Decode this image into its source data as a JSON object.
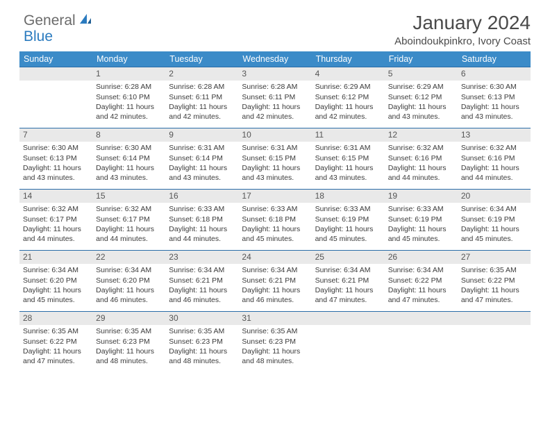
{
  "logo": {
    "text1": "General",
    "text2": "Blue"
  },
  "title": "January 2024",
  "subtitle": "Aboindoukpinkro, Ivory Coast",
  "weekdays": [
    "Sunday",
    "Monday",
    "Tuesday",
    "Wednesday",
    "Thursday",
    "Friday",
    "Saturday"
  ],
  "style": {
    "header_bg": "#3b8bc8",
    "header_fg": "#ffffff",
    "daynum_bg": "#e9e9e9",
    "row_border": "#2a6ca8",
    "text_color": "#3a3a3a",
    "title_fontsize": 28,
    "subtitle_fontsize": 15,
    "weekday_fontsize": 12.5,
    "daynum_fontsize": 12,
    "cell_fontsize": 10.5
  },
  "weeks": [
    [
      {
        "day": "",
        "lines": []
      },
      {
        "day": "1",
        "lines": [
          "Sunrise: 6:28 AM",
          "Sunset: 6:10 PM",
          "Daylight: 11 hours and 42 minutes."
        ]
      },
      {
        "day": "2",
        "lines": [
          "Sunrise: 6:28 AM",
          "Sunset: 6:11 PM",
          "Daylight: 11 hours and 42 minutes."
        ]
      },
      {
        "day": "3",
        "lines": [
          "Sunrise: 6:28 AM",
          "Sunset: 6:11 PM",
          "Daylight: 11 hours and 42 minutes."
        ]
      },
      {
        "day": "4",
        "lines": [
          "Sunrise: 6:29 AM",
          "Sunset: 6:12 PM",
          "Daylight: 11 hours and 42 minutes."
        ]
      },
      {
        "day": "5",
        "lines": [
          "Sunrise: 6:29 AM",
          "Sunset: 6:12 PM",
          "Daylight: 11 hours and 43 minutes."
        ]
      },
      {
        "day": "6",
        "lines": [
          "Sunrise: 6:30 AM",
          "Sunset: 6:13 PM",
          "Daylight: 11 hours and 43 minutes."
        ]
      }
    ],
    [
      {
        "day": "7",
        "lines": [
          "Sunrise: 6:30 AM",
          "Sunset: 6:13 PM",
          "Daylight: 11 hours and 43 minutes."
        ]
      },
      {
        "day": "8",
        "lines": [
          "Sunrise: 6:30 AM",
          "Sunset: 6:14 PM",
          "Daylight: 11 hours and 43 minutes."
        ]
      },
      {
        "day": "9",
        "lines": [
          "Sunrise: 6:31 AM",
          "Sunset: 6:14 PM",
          "Daylight: 11 hours and 43 minutes."
        ]
      },
      {
        "day": "10",
        "lines": [
          "Sunrise: 6:31 AM",
          "Sunset: 6:15 PM",
          "Daylight: 11 hours and 43 minutes."
        ]
      },
      {
        "day": "11",
        "lines": [
          "Sunrise: 6:31 AM",
          "Sunset: 6:15 PM",
          "Daylight: 11 hours and 43 minutes."
        ]
      },
      {
        "day": "12",
        "lines": [
          "Sunrise: 6:32 AM",
          "Sunset: 6:16 PM",
          "Daylight: 11 hours and 44 minutes."
        ]
      },
      {
        "day": "13",
        "lines": [
          "Sunrise: 6:32 AM",
          "Sunset: 6:16 PM",
          "Daylight: 11 hours and 44 minutes."
        ]
      }
    ],
    [
      {
        "day": "14",
        "lines": [
          "Sunrise: 6:32 AM",
          "Sunset: 6:17 PM",
          "Daylight: 11 hours and 44 minutes."
        ]
      },
      {
        "day": "15",
        "lines": [
          "Sunrise: 6:32 AM",
          "Sunset: 6:17 PM",
          "Daylight: 11 hours and 44 minutes."
        ]
      },
      {
        "day": "16",
        "lines": [
          "Sunrise: 6:33 AM",
          "Sunset: 6:18 PM",
          "Daylight: 11 hours and 44 minutes."
        ]
      },
      {
        "day": "17",
        "lines": [
          "Sunrise: 6:33 AM",
          "Sunset: 6:18 PM",
          "Daylight: 11 hours and 45 minutes."
        ]
      },
      {
        "day": "18",
        "lines": [
          "Sunrise: 6:33 AM",
          "Sunset: 6:19 PM",
          "Daylight: 11 hours and 45 minutes."
        ]
      },
      {
        "day": "19",
        "lines": [
          "Sunrise: 6:33 AM",
          "Sunset: 6:19 PM",
          "Daylight: 11 hours and 45 minutes."
        ]
      },
      {
        "day": "20",
        "lines": [
          "Sunrise: 6:34 AM",
          "Sunset: 6:19 PM",
          "Daylight: 11 hours and 45 minutes."
        ]
      }
    ],
    [
      {
        "day": "21",
        "lines": [
          "Sunrise: 6:34 AM",
          "Sunset: 6:20 PM",
          "Daylight: 11 hours and 45 minutes."
        ]
      },
      {
        "day": "22",
        "lines": [
          "Sunrise: 6:34 AM",
          "Sunset: 6:20 PM",
          "Daylight: 11 hours and 46 minutes."
        ]
      },
      {
        "day": "23",
        "lines": [
          "Sunrise: 6:34 AM",
          "Sunset: 6:21 PM",
          "Daylight: 11 hours and 46 minutes."
        ]
      },
      {
        "day": "24",
        "lines": [
          "Sunrise: 6:34 AM",
          "Sunset: 6:21 PM",
          "Daylight: 11 hours and 46 minutes."
        ]
      },
      {
        "day": "25",
        "lines": [
          "Sunrise: 6:34 AM",
          "Sunset: 6:21 PM",
          "Daylight: 11 hours and 47 minutes."
        ]
      },
      {
        "day": "26",
        "lines": [
          "Sunrise: 6:34 AM",
          "Sunset: 6:22 PM",
          "Daylight: 11 hours and 47 minutes."
        ]
      },
      {
        "day": "27",
        "lines": [
          "Sunrise: 6:35 AM",
          "Sunset: 6:22 PM",
          "Daylight: 11 hours and 47 minutes."
        ]
      }
    ],
    [
      {
        "day": "28",
        "lines": [
          "Sunrise: 6:35 AM",
          "Sunset: 6:22 PM",
          "Daylight: 11 hours and 47 minutes."
        ]
      },
      {
        "day": "29",
        "lines": [
          "Sunrise: 6:35 AM",
          "Sunset: 6:23 PM",
          "Daylight: 11 hours and 48 minutes."
        ]
      },
      {
        "day": "30",
        "lines": [
          "Sunrise: 6:35 AM",
          "Sunset: 6:23 PM",
          "Daylight: 11 hours and 48 minutes."
        ]
      },
      {
        "day": "31",
        "lines": [
          "Sunrise: 6:35 AM",
          "Sunset: 6:23 PM",
          "Daylight: 11 hours and 48 minutes."
        ]
      },
      {
        "day": "",
        "lines": []
      },
      {
        "day": "",
        "lines": []
      },
      {
        "day": "",
        "lines": []
      }
    ]
  ]
}
